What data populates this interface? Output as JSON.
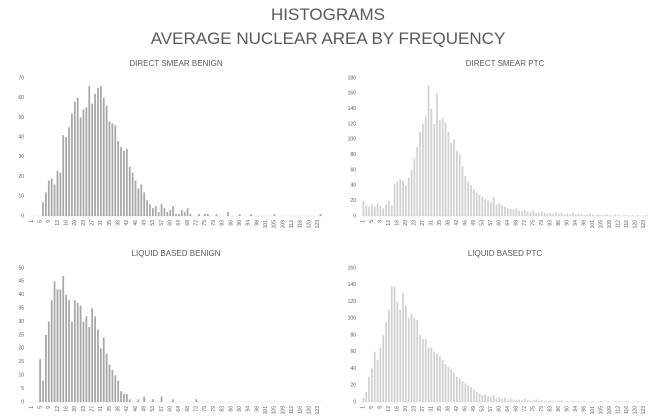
{
  "title": "HISTOGRAMS",
  "subtitle": "AVERAGE NUCLEAR AREA BY FREQUENCY",
  "chart_data": [
    {
      "type": "bar",
      "title": "DIRECT SMEAR BENIGN",
      "color": "#a6a6a6",
      "ylim": [
        0,
        70
      ],
      "yticks": [
        0,
        10,
        20,
        30,
        40,
        50,
        60,
        70
      ],
      "categories": [
        "1",
        null,
        null,
        "5",
        null,
        null,
        "9",
        null,
        null,
        "12",
        null,
        null,
        "16",
        null,
        null,
        "20",
        null,
        null,
        "23",
        null,
        null,
        "27",
        null,
        null,
        "31",
        null,
        null,
        "35",
        null,
        null,
        "38",
        null,
        null,
        "42",
        null,
        null,
        "46",
        null,
        null,
        "49",
        null,
        null,
        "53",
        null,
        null,
        "57",
        null,
        null,
        "60",
        null,
        null,
        "64",
        null,
        null,
        "68",
        null,
        null,
        "72",
        null,
        null,
        "75",
        null,
        null,
        "79",
        null,
        null,
        "83",
        null,
        null,
        "86",
        null,
        null,
        "90",
        null,
        null,
        "94",
        null,
        null,
        "98",
        null,
        null,
        "101",
        null,
        null,
        "105",
        null,
        null,
        "109",
        null,
        null,
        "112",
        null,
        null,
        "116",
        null,
        null,
        "120",
        null,
        null,
        "123",
        null
      ],
      "values": [
        0,
        0,
        0,
        0,
        7,
        12,
        18,
        19,
        16,
        23,
        22,
        41,
        40,
        45,
        52,
        58,
        60,
        50,
        54,
        55,
        66,
        57,
        62,
        65,
        66,
        60,
        56,
        48,
        47,
        46,
        38,
        35,
        33,
        34,
        25,
        22,
        18,
        14,
        16,
        12,
        8,
        6,
        4,
        5,
        2,
        6,
        4,
        2,
        3,
        5,
        1,
        1,
        3,
        2,
        4,
        1,
        0,
        0,
        1,
        0,
        1,
        1,
        0,
        0,
        1,
        0,
        0,
        0,
        2,
        0,
        0,
        0,
        1,
        0,
        0,
        0,
        1,
        0,
        0,
        0,
        0,
        0,
        0,
        0,
        1,
        0,
        0,
        0,
        0,
        0,
        0,
        0,
        0,
        0,
        0,
        0,
        0,
        0,
        0,
        0,
        1
      ]
    },
    {
      "type": "bar",
      "title": "DIRECT SMEAR PTC",
      "color": "#d0d0d0",
      "ylim": [
        0,
        180
      ],
      "yticks": [
        0,
        20,
        40,
        60,
        80,
        100,
        120,
        140,
        160,
        180
      ],
      "categories": [
        "1",
        null,
        null,
        "5",
        null,
        null,
        "9",
        null,
        null,
        "12",
        null,
        null,
        "16",
        null,
        null,
        "20",
        null,
        null,
        "23",
        null,
        null,
        "27",
        null,
        null,
        "31",
        null,
        null,
        "35",
        null,
        null,
        "38",
        null,
        null,
        "42",
        null,
        null,
        "46",
        null,
        null,
        "49",
        null,
        null,
        "53",
        null,
        null,
        "57",
        null,
        null,
        "60",
        null,
        null,
        "64",
        null,
        null,
        "68",
        null,
        null,
        "72",
        null,
        null,
        "75",
        null,
        null,
        "79",
        null,
        null,
        "83",
        null,
        null,
        "86",
        null,
        null,
        "90",
        null,
        null,
        "94",
        null,
        null,
        "98",
        null,
        null,
        "101",
        null,
        null,
        "105",
        null,
        null,
        "109",
        null,
        null,
        "112",
        null,
        null,
        "116",
        null,
        null,
        "120",
        null,
        null,
        "123",
        null
      ],
      "values": [
        20,
        14,
        12,
        15,
        12,
        16,
        13,
        10,
        15,
        20,
        14,
        42,
        45,
        48,
        46,
        40,
        50,
        60,
        75,
        90,
        110,
        120,
        130,
        170,
        140,
        120,
        160,
        125,
        128,
        122,
        110,
        95,
        100,
        85,
        80,
        65,
        52,
        45,
        40,
        35,
        30,
        28,
        25,
        22,
        20,
        18,
        25,
        15,
        17,
        14,
        12,
        10,
        9,
        8,
        10,
        7,
        6,
        8,
        6,
        5,
        7,
        4,
        5,
        6,
        4,
        3,
        4,
        3,
        5,
        3,
        4,
        2,
        3,
        2,
        4,
        2,
        3,
        2,
        1,
        2,
        3,
        2,
        1,
        2,
        1,
        1,
        2,
        1,
        1,
        2,
        1,
        0,
        1,
        1,
        0,
        1,
        0,
        1,
        0,
        0,
        1
      ]
    },
    {
      "type": "bar",
      "title": "LIQUID BASED BENIGN",
      "color": "#a6a6a6",
      "ylim": [
        0,
        50
      ],
      "yticks": [
        0,
        5,
        10,
        15,
        20,
        25,
        30,
        35,
        40,
        45,
        50
      ],
      "categories": [
        "1",
        null,
        null,
        "5",
        null,
        null,
        "9",
        null,
        null,
        "12",
        null,
        null,
        "16",
        null,
        null,
        "20",
        null,
        null,
        "23",
        null,
        null,
        "27",
        null,
        null,
        "31",
        null,
        null,
        "35",
        null,
        null,
        "38",
        null,
        null,
        "42",
        null,
        null,
        "46",
        null,
        null,
        "49",
        null,
        null,
        "53",
        null,
        null,
        "57",
        null,
        null,
        "60",
        null,
        null,
        "64",
        null,
        null,
        "68",
        null,
        null,
        "72",
        null,
        null,
        "75",
        null,
        null,
        "79",
        null,
        null,
        "83",
        null,
        null,
        "86",
        null,
        null,
        "90",
        null,
        null,
        "94",
        null,
        null,
        "98",
        null,
        null,
        "101",
        null,
        null,
        "105",
        null,
        null,
        "109",
        null,
        null,
        "112",
        null,
        null,
        "116",
        null,
        null,
        "120",
        null,
        null,
        "123",
        null
      ],
      "values": [
        0,
        0,
        0,
        16,
        8,
        25,
        30,
        38,
        45,
        42,
        42,
        47,
        40,
        38,
        30,
        38,
        37,
        36,
        30,
        32,
        28,
        35,
        32,
        27,
        20,
        24,
        18,
        14,
        12,
        10,
        8,
        4,
        3,
        3,
        1,
        0,
        0,
        1,
        0,
        2,
        0,
        0,
        1,
        0,
        0,
        2,
        0,
        0,
        0,
        1,
        0,
        0,
        0,
        0,
        0,
        0,
        0,
        1,
        0,
        0,
        0,
        0,
        0,
        0,
        0,
        0,
        0,
        0,
        0,
        0,
        0,
        0,
        0,
        0,
        0,
        0,
        0,
        0,
        0,
        0,
        0,
        0,
        0,
        0,
        0,
        0,
        0,
        0,
        0,
        0,
        0,
        0,
        0,
        0,
        0,
        0,
        0,
        0,
        0,
        0,
        0
      ]
    },
    {
      "type": "bar",
      "title": "LIQUID BASED PTC",
      "color": "#d0d0d0",
      "ylim": [
        0,
        160
      ],
      "yticks": [
        0,
        20,
        40,
        60,
        80,
        100,
        120,
        140,
        160
      ],
      "categories": [
        "1",
        null,
        null,
        "5",
        null,
        null,
        "9",
        null,
        null,
        "12",
        null,
        null,
        "16",
        null,
        null,
        "20",
        null,
        null,
        "23",
        null,
        null,
        "27",
        null,
        null,
        "31",
        null,
        null,
        "35",
        null,
        null,
        "38",
        null,
        null,
        "42",
        null,
        null,
        "46",
        null,
        null,
        "49",
        null,
        null,
        "53",
        null,
        null,
        "57",
        null,
        null,
        "60",
        null,
        null,
        "64",
        null,
        null,
        "68",
        null,
        null,
        "72",
        null,
        null,
        "75",
        null,
        null,
        "79",
        null,
        null,
        "83",
        null,
        null,
        "86",
        null,
        null,
        "90",
        null,
        null,
        "94",
        null,
        null,
        "98",
        null,
        null,
        "101",
        null,
        null,
        "105",
        null,
        null,
        "109",
        null,
        null,
        "112",
        null,
        null,
        "116",
        null,
        null,
        "120",
        null,
        null,
        "123",
        null
      ],
      "values": [
        5,
        12,
        30,
        40,
        60,
        50,
        65,
        80,
        95,
        110,
        138,
        138,
        120,
        110,
        130,
        115,
        100,
        105,
        100,
        98,
        80,
        75,
        75,
        65,
        65,
        60,
        58,
        55,
        50,
        45,
        42,
        40,
        35,
        30,
        28,
        25,
        22,
        20,
        18,
        15,
        12,
        10,
        8,
        9,
        7,
        6,
        8,
        5,
        6,
        4,
        5,
        3,
        4,
        3,
        2,
        3,
        2,
        4,
        2,
        1,
        2,
        3,
        1,
        2,
        1,
        1,
        2,
        1,
        0,
        1,
        2,
        0,
        1,
        0,
        1,
        0,
        1,
        0,
        1,
        0,
        0,
        1,
        0,
        0,
        1,
        0,
        0,
        0,
        0,
        1,
        0,
        0,
        0,
        1,
        0,
        0,
        0,
        1,
        0,
        0,
        0
      ]
    }
  ]
}
